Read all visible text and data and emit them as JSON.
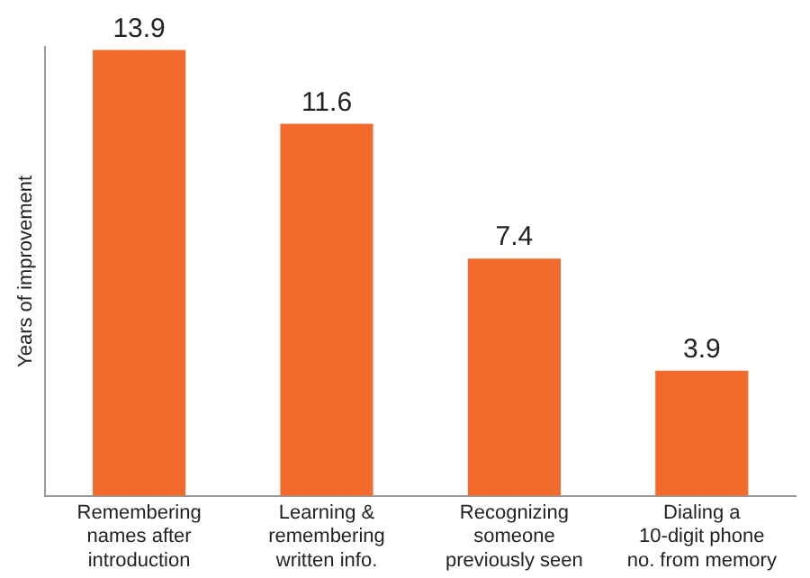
{
  "chart_data": {
    "type": "bar",
    "ylabel": "Years of improvement",
    "categories": [
      "Remembering names after introduction",
      "Learning & remembering written info.",
      "Recognizing someone previously seen",
      "Dialing a 10-digit phone no. from memory"
    ],
    "values": [
      13.9,
      11.6,
      7.4,
      3.9
    ],
    "color": "#f26a2c",
    "data_labels": true,
    "tick_labels": "x",
    "grid": false,
    "legend": false
  }
}
